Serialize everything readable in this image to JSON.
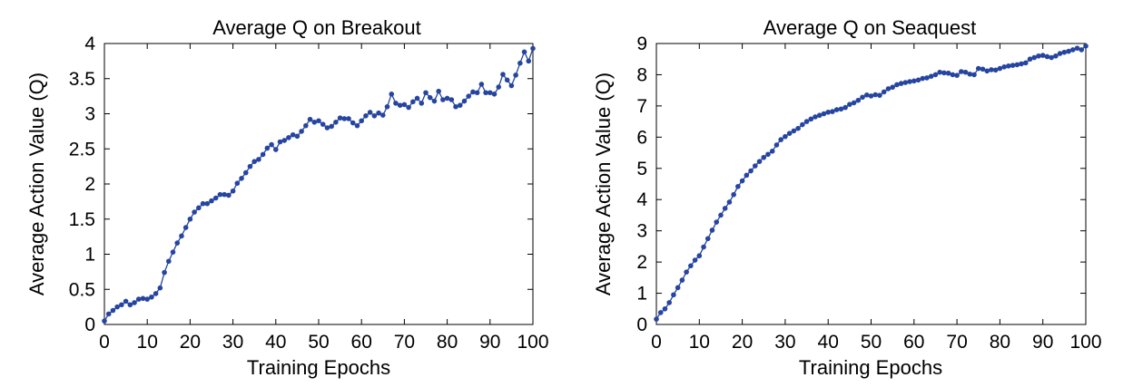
{
  "chart_data": [
    {
      "type": "line",
      "title": "Average Q on Breakout",
      "xlabel": "Training Epochs",
      "ylabel": "Average Action Value (Q)",
      "xlim": [
        0,
        100
      ],
      "ylim": [
        0,
        4
      ],
      "xticks": [
        "0",
        "10",
        "20",
        "30",
        "40",
        "50",
        "60",
        "70",
        "80",
        "90",
        "100"
      ],
      "yticks": [
        "0",
        "0.5",
        "1",
        "1.5",
        "2",
        "2.5",
        "3",
        "3.5",
        "4"
      ],
      "grid": false,
      "marker": "dot",
      "color": "#2645a0",
      "series": [
        {
          "x": [
            0,
            1,
            2,
            3,
            4,
            5,
            6,
            7,
            8,
            9,
            10,
            11,
            12,
            13,
            14,
            15,
            16,
            17,
            18,
            19,
            20,
            21,
            22,
            23,
            24,
            25,
            26,
            27,
            28,
            29,
            30,
            31,
            32,
            33,
            34,
            35,
            36,
            37,
            38,
            39,
            40,
            41,
            42,
            43,
            44,
            45,
            46,
            47,
            48,
            49,
            50,
            51,
            52,
            53,
            54,
            55,
            56,
            57,
            58,
            59,
            60,
            61,
            62,
            63,
            64,
            65,
            66,
            67,
            68,
            69,
            70,
            71,
            72,
            73,
            74,
            75,
            76,
            77,
            78,
            79,
            80,
            81,
            82,
            83,
            84,
            85,
            86,
            87,
            88,
            89,
            90,
            91,
            92,
            93,
            94,
            95,
            96,
            97,
            98,
            99,
            100
          ],
          "values": [
            0.05,
            0.15,
            0.2,
            0.25,
            0.28,
            0.33,
            0.28,
            0.31,
            0.36,
            0.37,
            0.36,
            0.39,
            0.44,
            0.52,
            0.74,
            0.9,
            1.03,
            1.16,
            1.26,
            1.38,
            1.5,
            1.6,
            1.66,
            1.72,
            1.72,
            1.76,
            1.8,
            1.85,
            1.85,
            1.84,
            1.9,
            2.01,
            2.08,
            2.16,
            2.25,
            2.32,
            2.35,
            2.42,
            2.51,
            2.56,
            2.49,
            2.6,
            2.62,
            2.66,
            2.7,
            2.68,
            2.75,
            2.83,
            2.92,
            2.88,
            2.9,
            2.85,
            2.8,
            2.82,
            2.88,
            2.94,
            2.93,
            2.93,
            2.87,
            2.83,
            2.9,
            2.97,
            3.02,
            2.97,
            3.01,
            2.98,
            3.1,
            3.28,
            3.15,
            3.12,
            3.13,
            3.09,
            3.17,
            3.22,
            3.15,
            3.3,
            3.23,
            3.18,
            3.32,
            3.2,
            3.22,
            3.2,
            3.1,
            3.12,
            3.18,
            3.25,
            3.31,
            3.3,
            3.42,
            3.3,
            3.3,
            3.28,
            3.38,
            3.56,
            3.48,
            3.4,
            3.55,
            3.72,
            3.88,
            3.75,
            3.93
          ]
        }
      ]
    },
    {
      "type": "line",
      "title": "Average Q on Seaquest",
      "xlabel": "Training Epochs",
      "ylabel": "Average Action Value (Q)",
      "xlim": [
        0,
        100
      ],
      "ylim": [
        0,
        9
      ],
      "xticks": [
        "0",
        "10",
        "20",
        "30",
        "40",
        "50",
        "60",
        "70",
        "80",
        "90",
        "100"
      ],
      "yticks": [
        "0",
        "1",
        "2",
        "3",
        "4",
        "5",
        "6",
        "7",
        "8",
        "9"
      ],
      "grid": false,
      "marker": "dot",
      "color": "#2645a0",
      "series": [
        {
          "x": [
            0,
            1,
            2,
            3,
            4,
            5,
            6,
            7,
            8,
            9,
            10,
            11,
            12,
            13,
            14,
            15,
            16,
            17,
            18,
            19,
            20,
            21,
            22,
            23,
            24,
            25,
            26,
            27,
            28,
            29,
            30,
            31,
            32,
            33,
            34,
            35,
            36,
            37,
            38,
            39,
            40,
            41,
            42,
            43,
            44,
            45,
            46,
            47,
            48,
            49,
            50,
            51,
            52,
            53,
            54,
            55,
            56,
            57,
            58,
            59,
            60,
            61,
            62,
            63,
            64,
            65,
            66,
            67,
            68,
            69,
            70,
            71,
            72,
            73,
            74,
            75,
            76,
            77,
            78,
            79,
            80,
            81,
            82,
            83,
            84,
            85,
            86,
            87,
            88,
            89,
            90,
            91,
            92,
            93,
            94,
            95,
            96,
            97,
            98,
            99,
            100
          ],
          "values": [
            0.17,
            0.38,
            0.5,
            0.7,
            0.95,
            1.18,
            1.42,
            1.68,
            1.88,
            2.06,
            2.2,
            2.48,
            2.75,
            3.02,
            3.28,
            3.5,
            3.72,
            3.92,
            4.16,
            4.42,
            4.6,
            4.78,
            4.92,
            5.08,
            5.22,
            5.35,
            5.45,
            5.55,
            5.75,
            5.92,
            6.02,
            6.12,
            6.2,
            6.28,
            6.4,
            6.5,
            6.58,
            6.65,
            6.7,
            6.75,
            6.8,
            6.82,
            6.88,
            6.9,
            6.95,
            7.05,
            7.1,
            7.18,
            7.28,
            7.35,
            7.32,
            7.36,
            7.34,
            7.45,
            7.55,
            7.6,
            7.68,
            7.72,
            7.75,
            7.78,
            7.8,
            7.83,
            7.88,
            7.9,
            7.95,
            8.0,
            8.08,
            8.06,
            8.05,
            8.0,
            7.98,
            8.1,
            8.08,
            8.02,
            8.0,
            8.2,
            8.18,
            8.12,
            8.16,
            8.15,
            8.2,
            8.25,
            8.28,
            8.3,
            8.32,
            8.35,
            8.38,
            8.5,
            8.55,
            8.6,
            8.62,
            8.58,
            8.55,
            8.6,
            8.68,
            8.72,
            8.75,
            8.8,
            8.85,
            8.8,
            8.92
          ]
        }
      ]
    }
  ]
}
